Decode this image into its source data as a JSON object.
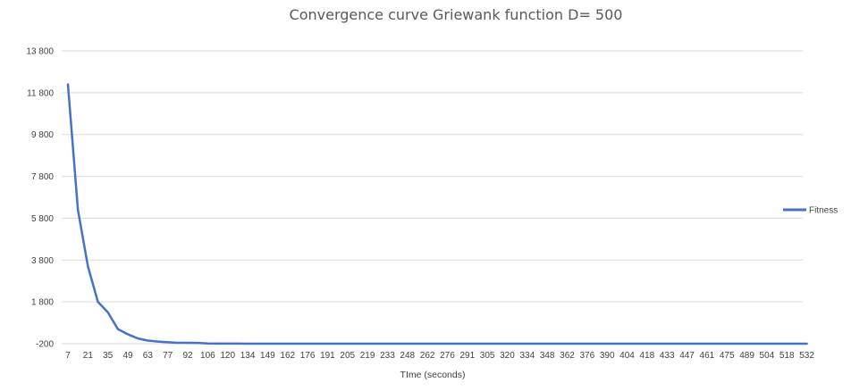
{
  "chart_data": {
    "type": "line",
    "title": "Convergence curve Griewank function D= 500",
    "xlabel": "TIme (seconds)",
    "ylabel": "",
    "x": [
      7,
      14,
      21,
      28,
      35,
      42,
      49,
      56,
      63,
      70,
      77,
      84,
      92,
      99,
      106,
      113,
      120,
      127,
      134,
      141,
      149,
      155,
      162,
      169,
      176,
      183,
      191,
      198,
      205,
      212,
      219,
      226,
      233,
      240,
      248,
      255,
      262,
      269,
      276,
      283,
      291,
      298,
      305,
      312,
      320,
      327,
      334,
      341,
      348,
      355,
      362,
      369,
      376,
      383,
      390,
      397,
      404,
      411,
      418,
      425,
      433,
      440,
      447,
      454,
      461,
      468,
      475,
      482,
      489,
      496,
      504,
      511,
      518,
      525,
      532
    ],
    "x_tick_labels": [
      "7",
      "21",
      "35",
      "49",
      "63",
      "77",
      "92",
      "106",
      "120",
      "134",
      "149",
      "162",
      "176",
      "191",
      "205",
      "219",
      "233",
      "248",
      "262",
      "276",
      "291",
      "305",
      "320",
      "334",
      "348",
      "362",
      "376",
      "390",
      "404",
      "418",
      "433",
      "447",
      "461",
      "475",
      "489",
      "504",
      "518",
      "532"
    ],
    "y_tick_labels": [
      "13 800",
      "11 800",
      "9 800",
      "7 800",
      "5 800",
      "3 800",
      "1 800",
      "-200"
    ],
    "ylim": [
      -200,
      13800
    ],
    "y_step": 2000,
    "grid": true,
    "legend_position": "right",
    "series": [
      {
        "name": "Fitness",
        "color": "#4472c4",
        "values": [
          12200,
          6200,
          3500,
          1800,
          1300,
          500,
          250,
          50,
          -50,
          -100,
          -130,
          -160,
          -160,
          -165,
          -190,
          -195,
          -195,
          -195,
          -200,
          -200,
          -200,
          -200,
          -200,
          -200,
          -200,
          -200,
          -200,
          -200,
          -200,
          -200,
          -200,
          -200,
          -200,
          -200,
          -200,
          -200,
          -200,
          -200,
          -200,
          -200,
          -200,
          -200,
          -200,
          -200,
          -200,
          -200,
          -200,
          -200,
          -200,
          -200,
          -200,
          -200,
          -200,
          -200,
          -200,
          -200,
          -200,
          -200,
          -200,
          -200,
          -200,
          -200,
          -200,
          -200,
          -200,
          -200,
          -200,
          -200,
          -200,
          -200,
          -200,
          -200,
          -200,
          -200,
          -200
        ]
      }
    ]
  }
}
